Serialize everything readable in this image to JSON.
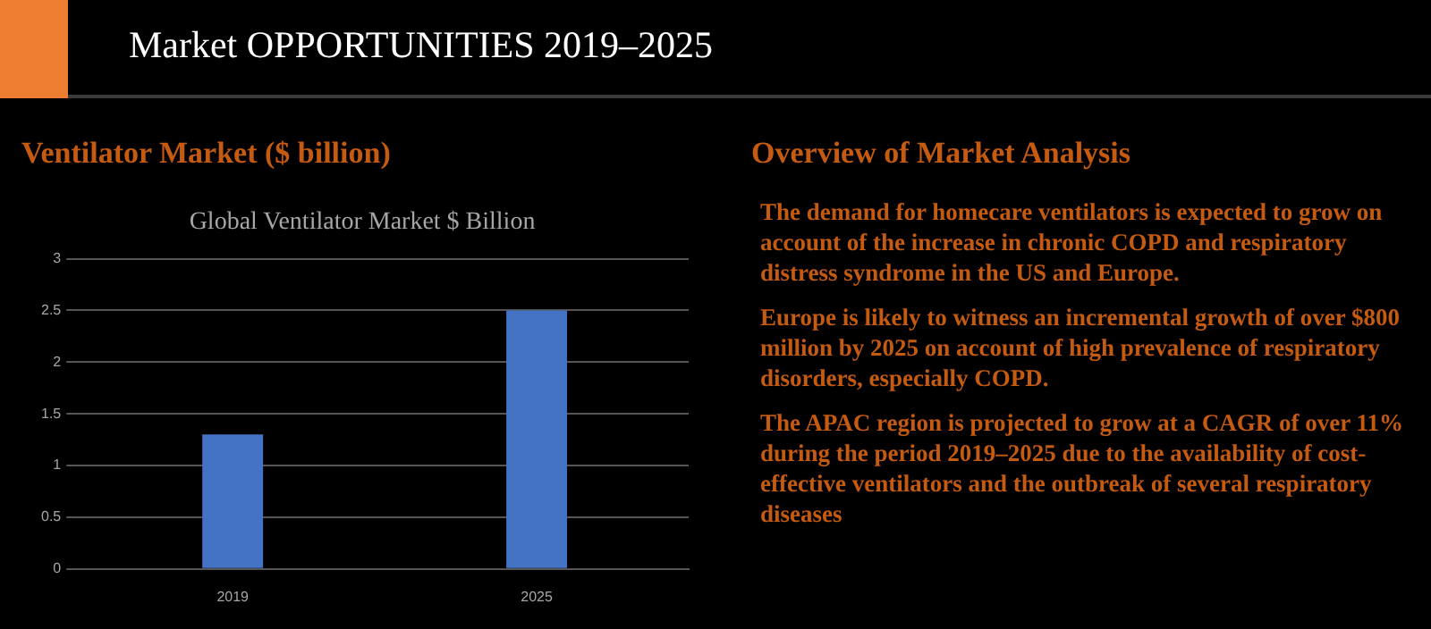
{
  "chart_data": {
    "type": "bar",
    "title": "Global Ventilator Market $ Billion",
    "categories": [
      "2019",
      "2025"
    ],
    "values": [
      1.3,
      2.5
    ],
    "color": "#4472c4",
    "ylim": [
      0,
      3
    ],
    "yticks": [
      0,
      0.5,
      1,
      1.5,
      2,
      2.5,
      3
    ],
    "grid": "y",
    "annotations": [
      "Market OPPORTUNITIES  2019–2025",
      "Ventilator Market ($ billion)",
      "Overview of Market Analysis",
      "The demand for homecare ventilators is expected to grow on account of the increase in chronic COPD and respiratory distress syndrome in the US and Europe.",
      "Europe is likely to witness an incremental growth of over $800 million by 2025 on account of high prevalence of respiratory disorders, especially COPD.",
      "The APAC region is projected to grow at a CAGR of over 11% during the period 2019–2025 due to the availability of cost-effective ventilators and the outbreak of several respiratory diseases"
    ]
  }
}
